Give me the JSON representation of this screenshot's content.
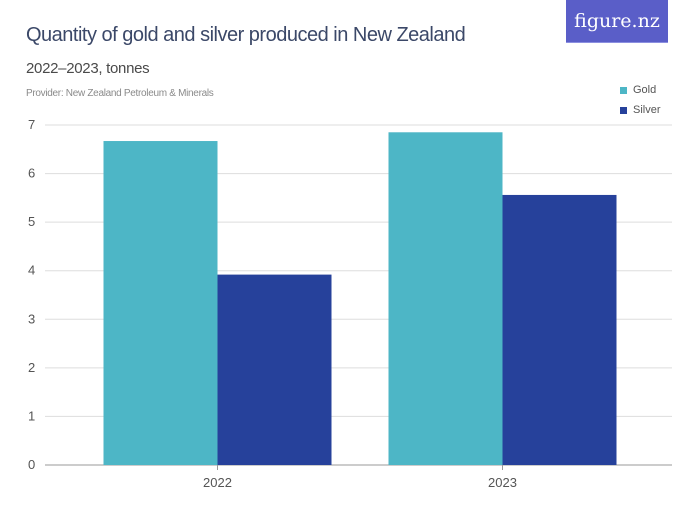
{
  "header": {
    "title": "Quantity of gold and silver produced in New Zealand",
    "subtitle": "2022–2023, tonnes",
    "provider": "Provider: New Zealand Petroleum & Minerals",
    "logo": "figure.nz"
  },
  "chart_data": {
    "type": "bar",
    "title": "Quantity of gold and silver produced in New Zealand",
    "subtitle": "2022–2023, tonnes",
    "categories": [
      "2022",
      "2023"
    ],
    "series": [
      {
        "name": "Gold",
        "color": "#4db6c6",
        "values": [
          6.67,
          6.85
        ]
      },
      {
        "name": "Silver",
        "color": "#26419b",
        "values": [
          3.92,
          5.56
        ]
      }
    ],
    "ylim": [
      0,
      7
    ],
    "yticks": [
      0,
      1,
      2,
      3,
      4,
      5,
      6,
      7
    ],
    "grid": true,
    "legend": "top-right"
  }
}
